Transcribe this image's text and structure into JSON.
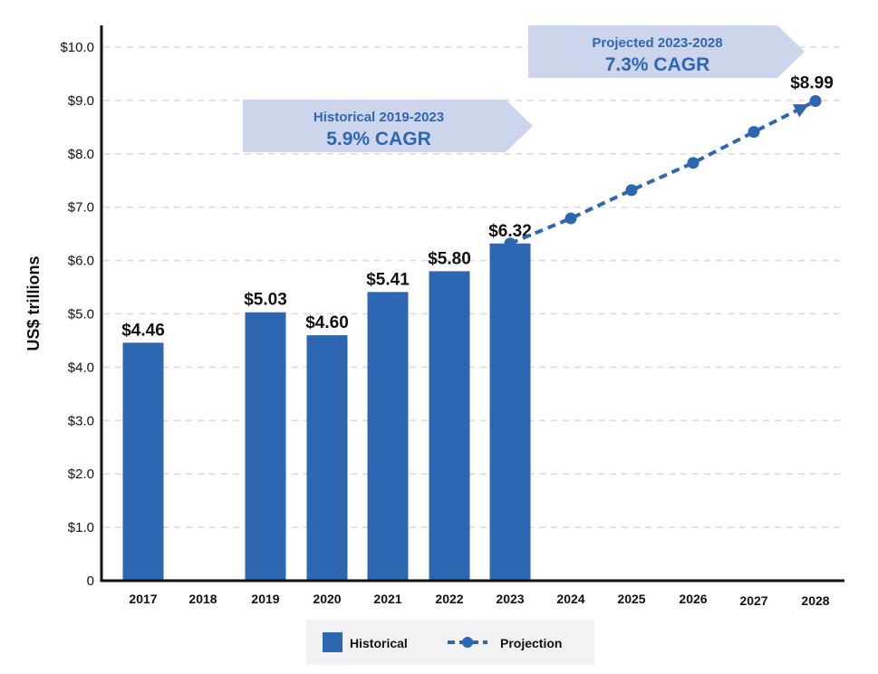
{
  "chart_data": {
    "type": "bar",
    "title": "",
    "xlabel": "",
    "ylabel": "US$ trillions",
    "ylim": [
      0,
      10
    ],
    "yticks": [
      "0",
      "$1.0",
      "$2.0",
      "$3.0",
      "$4.0",
      "$5.0",
      "$6.0",
      "$7.0",
      "$8.0",
      "$9.0",
      "$10.0"
    ],
    "grid": true,
    "categories": [
      "2017",
      "2018",
      "2019",
      "2020",
      "2021",
      "2022",
      "2023",
      "2024",
      "2025",
      "2026",
      "2027",
      "2028"
    ],
    "series": [
      {
        "name": "Historical",
        "kind": "bar",
        "color": "#2E67B1",
        "values": [
          4.46,
          null,
          5.03,
          4.6,
          5.41,
          5.8,
          6.32,
          null,
          null,
          null,
          null,
          null
        ],
        "labels": [
          "$4.46",
          "",
          "$5.03",
          "$4.60",
          "$5.41",
          "$5.80",
          "$6.32",
          "",
          "",
          "",
          "",
          ""
        ]
      },
      {
        "name": "Projection",
        "kind": "line-dashed-markers",
        "color": "#2E67B1",
        "values": [
          null,
          null,
          null,
          null,
          null,
          null,
          6.32,
          6.79,
          7.32,
          7.83,
          8.41,
          8.99
        ],
        "labels": [
          "",
          "",
          "",
          "",
          "",
          "",
          "",
          "",
          "",
          "",
          "",
          "$8.99"
        ]
      }
    ],
    "annotations": [
      {
        "line1": "Historical 2019-2023",
        "line2": "5.9% CAGR",
        "fill": "#CDD5EC",
        "span": [
          "2019",
          "2023"
        ]
      },
      {
        "line1": "Projected 2023-2028",
        "line2": "7.3% CAGR",
        "fill": "#CDD5EC",
        "span": [
          "2024",
          "2028"
        ]
      }
    ],
    "legend": {
      "position": "bottom-center",
      "background": "#F2F2F4",
      "items": [
        {
          "label": "Historical",
          "symbol": "square"
        },
        {
          "label": "Projection",
          "symbol": "dashed-line-dot"
        }
      ]
    }
  }
}
